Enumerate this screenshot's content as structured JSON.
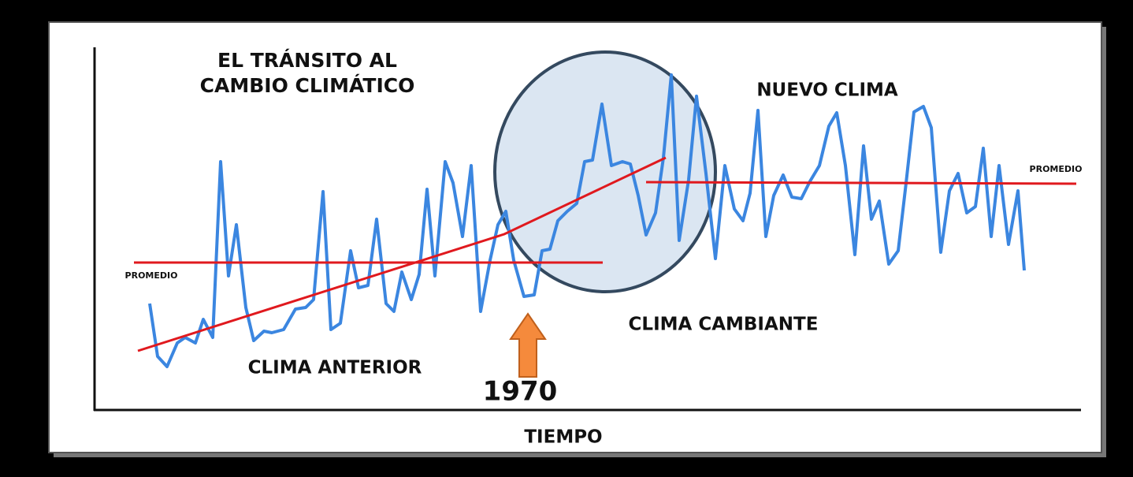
{
  "title_line1": "EL TRÁNSITO AL",
  "title_line2": "CAMBIO CLIMÁTICO",
  "labels": {
    "new_climate": "NUEVO CLIMA",
    "changing_climate": "CLIMA CAMBIANTE",
    "previous_climate": "CLIMA ANTERIOR",
    "average_left": "PROMEDIO",
    "average_right": "PROMEDIO",
    "year": "1970",
    "x_axis": "TIEMPO"
  }
}
